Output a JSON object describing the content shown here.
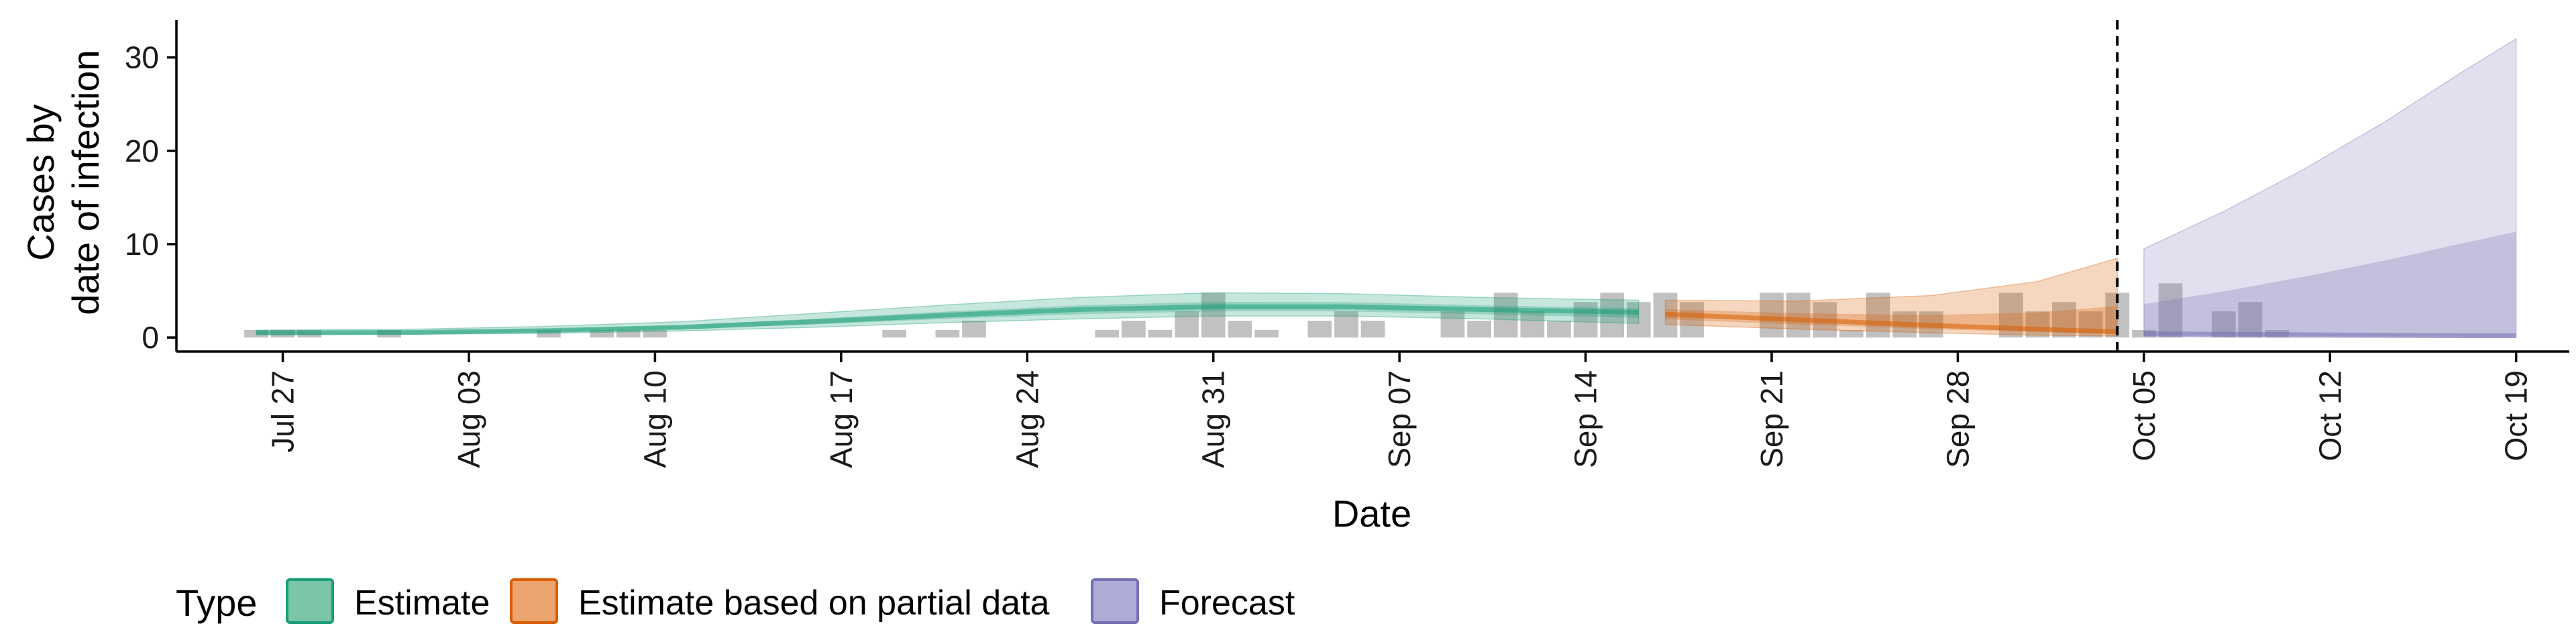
{
  "chart_data": {
    "type": "area",
    "ylabel_lines": [
      "Cases by",
      "date of infection"
    ],
    "xlabel": "Date",
    "x_start": "2020-07-23",
    "xlim": [
      "2020-07-23",
      "2020-10-21"
    ],
    "ylim": [
      -1.5,
      34
    ],
    "yticks": [
      0,
      10,
      20,
      30
    ],
    "xticks": [
      {
        "date": "2020-07-27",
        "label": "Jul 27"
      },
      {
        "date": "2020-08-03",
        "label": "Aug 03"
      },
      {
        "date": "2020-08-10",
        "label": "Aug 10"
      },
      {
        "date": "2020-08-17",
        "label": "Aug 17"
      },
      {
        "date": "2020-08-24",
        "label": "Aug 24"
      },
      {
        "date": "2020-08-31",
        "label": "Aug 31"
      },
      {
        "date": "2020-09-07",
        "label": "Sep 07"
      },
      {
        "date": "2020-09-14",
        "label": "Sep 14"
      },
      {
        "date": "2020-09-21",
        "label": "Sep 21"
      },
      {
        "date": "2020-09-28",
        "label": "Sep 28"
      },
      {
        "date": "2020-10-05",
        "label": "Oct 05"
      },
      {
        "date": "2020-10-12",
        "label": "Oct 12"
      },
      {
        "date": "2020-10-19",
        "label": "Oct 19"
      }
    ],
    "forecast_line_date": "2020-10-04",
    "reported_cases": {
      "start_date": "2020-07-26",
      "values": [
        0.8,
        0.8,
        0.8,
        0,
        0,
        0.8,
        0,
        0,
        0,
        0,
        0,
        0.8,
        0,
        0.8,
        0.8,
        0.8,
        0,
        0,
        0,
        0,
        0,
        0,
        0,
        0,
        0.8,
        0,
        0.8,
        1.8,
        0,
        0,
        0,
        0,
        0.8,
        1.8,
        0.8,
        2.8,
        4.8,
        1.8,
        0.8,
        0,
        1.8,
        2.8,
        1.8,
        0,
        0,
        2.8,
        1.8,
        4.8,
        2.8,
        1.8,
        3.8,
        4.8,
        3.8,
        4.8,
        3.8,
        0,
        0,
        4.8,
        4.8,
        3.8,
        0.8,
        4.8,
        2.8,
        2.8,
        0,
        0,
        4.8,
        2.8,
        3.8,
        2.8,
        4.8,
        0.8,
        5.8,
        0,
        2.8,
        3.8,
        0.8
      ]
    },
    "series": [
      {
        "name": "Estimate",
        "color": "#1b9e77",
        "points": [
          {
            "x": "2020-07-26",
            "mid": 0.5,
            "lo90": 0.3,
            "hi90": 0.8
          },
          {
            "x": "2020-08-01",
            "mid": 0.55,
            "lo90": 0.35,
            "hi90": 0.9
          },
          {
            "x": "2020-08-06",
            "mid": 0.75,
            "lo90": 0.45,
            "hi90": 1.2
          },
          {
            "x": "2020-08-11",
            "mid": 1.1,
            "lo90": 0.7,
            "hi90": 1.7
          },
          {
            "x": "2020-08-16",
            "mid": 1.7,
            "lo90": 1.1,
            "hi90": 2.6
          },
          {
            "x": "2020-08-21",
            "mid": 2.4,
            "lo90": 1.6,
            "hi90": 3.5
          },
          {
            "x": "2020-08-26",
            "mid": 3.0,
            "lo90": 2.0,
            "hi90": 4.3
          },
          {
            "x": "2020-08-31",
            "mid": 3.3,
            "lo90": 2.3,
            "hi90": 4.8
          },
          {
            "x": "2020-09-05",
            "mid": 3.3,
            "lo90": 2.3,
            "hi90": 4.7
          },
          {
            "x": "2020-09-10",
            "mid": 3.0,
            "lo90": 2.0,
            "hi90": 4.3
          },
          {
            "x": "2020-09-16",
            "mid": 2.7,
            "lo90": 1.5,
            "hi90": 4.0
          }
        ]
      },
      {
        "name": "Estimate based on partial data",
        "color": "#d95f02",
        "points": [
          {
            "x": "2020-09-17",
            "mid": 2.5,
            "lo90": 1.4,
            "hi90": 4.0
          },
          {
            "x": "2020-09-22",
            "mid": 1.9,
            "lo90": 0.9,
            "hi90": 3.9
          },
          {
            "x": "2020-09-27",
            "mid": 1.3,
            "lo90": 0.5,
            "hi90": 4.5
          },
          {
            "x": "2020-10-01",
            "mid": 0.9,
            "lo90": 0.25,
            "hi90": 6.0
          },
          {
            "x": "2020-10-04",
            "mid": 0.6,
            "lo90": 0.15,
            "hi90": 8.5
          }
        ]
      },
      {
        "name": "Forecast",
        "color": "#7570b3",
        "points": [
          {
            "x": "2020-10-05",
            "mid": 0.4,
            "lo90": 0.1,
            "hi90": 9.5
          },
          {
            "x": "2020-10-08",
            "mid": 0.35,
            "lo90": 0.05,
            "hi90": 13.5
          },
          {
            "x": "2020-10-11",
            "mid": 0.3,
            "lo90": 0.02,
            "hi90": 18.0
          },
          {
            "x": "2020-10-14",
            "mid": 0.25,
            "lo90": 0.01,
            "hi90": 23.0
          },
          {
            "x": "2020-10-17",
            "mid": 0.2,
            "lo90": 0.0,
            "hi90": 28.5
          },
          {
            "x": "2020-10-19",
            "mid": 0.2,
            "lo90": 0.0,
            "hi90": 32.0
          }
        ]
      }
    ],
    "legend": {
      "title": "Type",
      "position": "bottom",
      "items": [
        {
          "label": "Estimate",
          "fill": "#7cc5a8",
          "stroke": "#1b9e77"
        },
        {
          "label": "Estimate based on partial data",
          "fill": "#eda56f",
          "stroke": "#d95f02"
        },
        {
          "label": "Forecast",
          "fill": "#aeabd6",
          "stroke": "#7570b3"
        }
      ]
    }
  }
}
